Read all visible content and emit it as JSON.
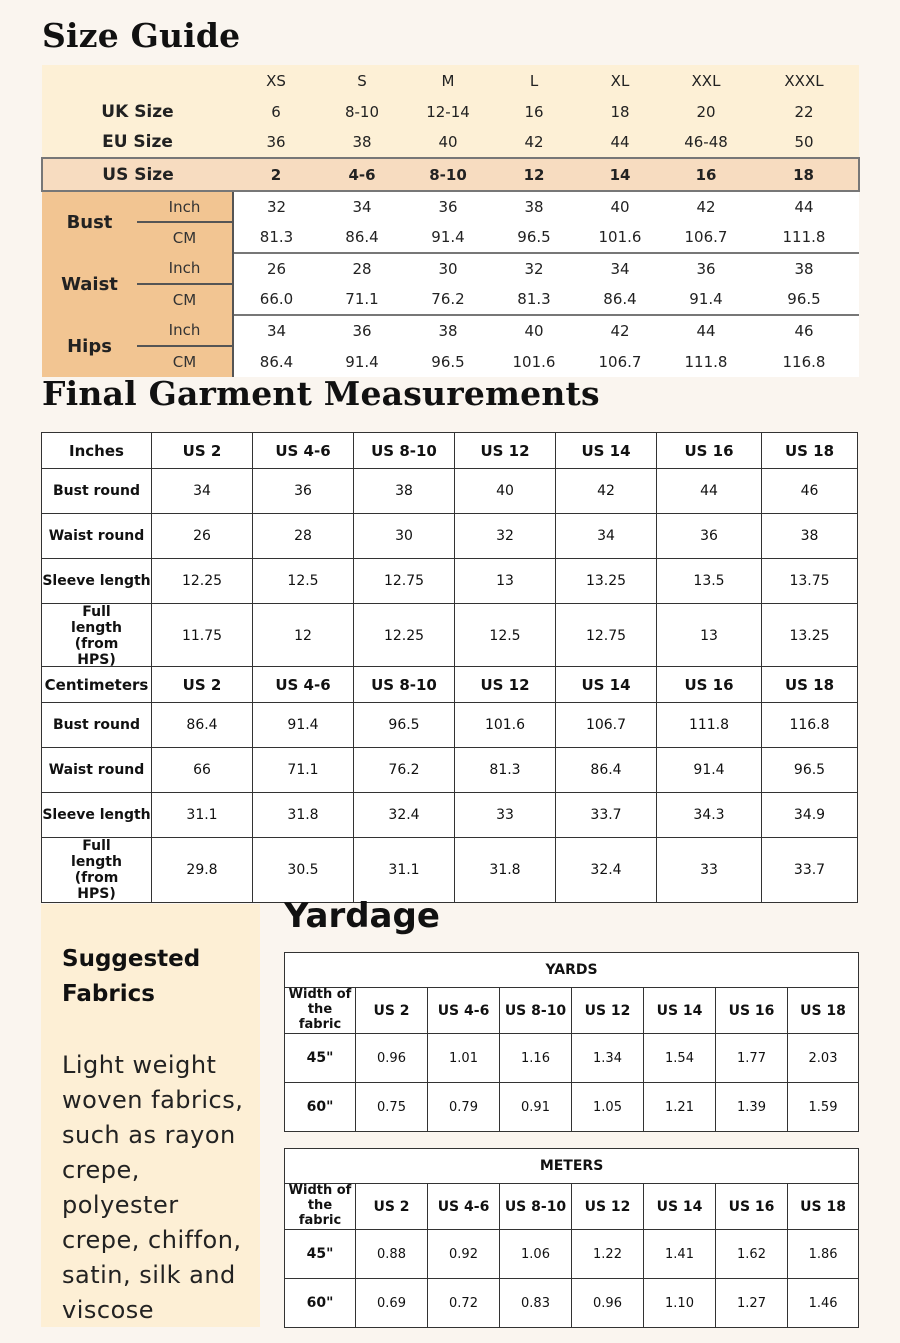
{
  "size_guide": {
    "title": "Size Guide",
    "letter_sizes": [
      "XS",
      "S",
      "M",
      "L",
      "XL",
      "XXL",
      "XXXL"
    ],
    "uk_label": "UK Size",
    "uk_sizes": [
      "6",
      "8-10",
      "12-14",
      "16",
      "18",
      "20",
      "22"
    ],
    "eu_label": "EU Size",
    "eu_sizes": [
      "36",
      "38",
      "40",
      "42",
      "44",
      "46-48",
      "50"
    ],
    "us_label": "US Size",
    "us_sizes": [
      "2",
      "4-6",
      "8-10",
      "12",
      "14",
      "16",
      "18"
    ],
    "measurements": [
      {
        "label": "Bust",
        "inch_label": "Inch",
        "cm_label": "CM",
        "inch": [
          "32",
          "34",
          "36",
          "38",
          "40",
          "42",
          "44"
        ],
        "cm": [
          "81.3",
          "86.4",
          "91.4",
          "96.5",
          "101.6",
          "106.7",
          "111.8"
        ]
      },
      {
        "label": "Waist",
        "inch_label": "Inch",
        "cm_label": "CM",
        "inch": [
          "26",
          "28",
          "30",
          "32",
          "34",
          "36",
          "38"
        ],
        "cm": [
          "66.0",
          "71.1",
          "76.2",
          "81.3",
          "86.4",
          "91.4",
          "96.5"
        ]
      },
      {
        "label": "Hips",
        "inch_label": "Inch",
        "cm_label": "CM",
        "inch": [
          "34",
          "36",
          "38",
          "40",
          "42",
          "44",
          "46"
        ],
        "cm": [
          "86.4",
          "91.4",
          "96.5",
          "101.6",
          "106.7",
          "111.8",
          "116.8"
        ]
      }
    ],
    "colors": {
      "cream": "#fdf0d6",
      "us_row": "#f7dcc0",
      "label_column": "#f2c592"
    }
  },
  "garment": {
    "title": "Final Garment Measurements",
    "tables": [
      {
        "unit": "Inches",
        "headers": [
          "US 2",
          "US 4-6",
          "US 8-10",
          "US 12",
          "US 14",
          "US 16",
          "US 18"
        ],
        "rows": [
          {
            "label": "Bust round",
            "values": [
              "34",
              "36",
              "38",
              "40",
              "42",
              "44",
              "46"
            ]
          },
          {
            "label": "Waist round",
            "values": [
              "26",
              "28",
              "30",
              "32",
              "34",
              "36",
              "38"
            ]
          },
          {
            "label": "Sleeve length",
            "values": [
              "12.25",
              "12.5",
              "12.75",
              "13",
              "13.25",
              "13.5",
              "13.75"
            ]
          },
          {
            "label": "Full length (from HPS)",
            "values": [
              "11.75",
              "12",
              "12.25",
              "12.5",
              "12.75",
              "13",
              "13.25"
            ]
          }
        ]
      },
      {
        "unit": "Centimeters",
        "headers": [
          "US 2",
          "US 4-6",
          "US 8-10",
          "US 12",
          "US 14",
          "US 16",
          "US 18"
        ],
        "rows": [
          {
            "label": "Bust round",
            "values": [
              "86.4",
              "91.4",
              "96.5",
              "101.6",
              "106.7",
              "111.8",
              "116.8"
            ]
          },
          {
            "label": "Waist round",
            "values": [
              "66",
              "71.1",
              "76.2",
              "81.3",
              "86.4",
              "91.4",
              "96.5"
            ]
          },
          {
            "label": "Sleeve length",
            "values": [
              "31.1",
              "31.8",
              "32.4",
              "33",
              "33.7",
              "34.3",
              "34.9"
            ]
          },
          {
            "label": "Full length (from HPS)",
            "values": [
              "29.8",
              "30.5",
              "31.1",
              "31.8",
              "32.4",
              "33",
              "33.7"
            ]
          }
        ]
      }
    ]
  },
  "fabrics": {
    "title": "Suggested Fabrics",
    "text": "Light weight woven fabrics, such as rayon crepe, polyester crepe, chiffon, satin, silk and viscose",
    "background": "#fdefd5"
  },
  "yardage": {
    "title": "Yardage",
    "tables": [
      {
        "unit": "YARDS",
        "corner": "Width of the fabric",
        "headers": [
          "US 2",
          "US 4-6",
          "US 8-10",
          "US 12",
          "US 14",
          "US 16",
          "US 18"
        ],
        "rows": [
          {
            "label": "45\"",
            "values": [
              "0.96",
              "1.01",
              "1.16",
              "1.34",
              "1.54",
              "1.77",
              "2.03"
            ]
          },
          {
            "label": "60\"",
            "values": [
              "0.75",
              "0.79",
              "0.91",
              "1.05",
              "1.21",
              "1.39",
              "1.59"
            ]
          }
        ]
      },
      {
        "unit": "METERS",
        "corner": "Width of the fabric",
        "headers": [
          "US 2",
          "US 4-6",
          "US 8-10",
          "US 12",
          "US 14",
          "US 16",
          "US 18"
        ],
        "rows": [
          {
            "label": "45\"",
            "values": [
              "0.88",
              "0.92",
              "1.06",
              "1.22",
              "1.41",
              "1.62",
              "1.86"
            ]
          },
          {
            "label": "60\"",
            "values": [
              "0.69",
              "0.72",
              "0.83",
              "0.96",
              "1.10",
              "1.27",
              "1.46"
            ]
          }
        ]
      }
    ]
  }
}
